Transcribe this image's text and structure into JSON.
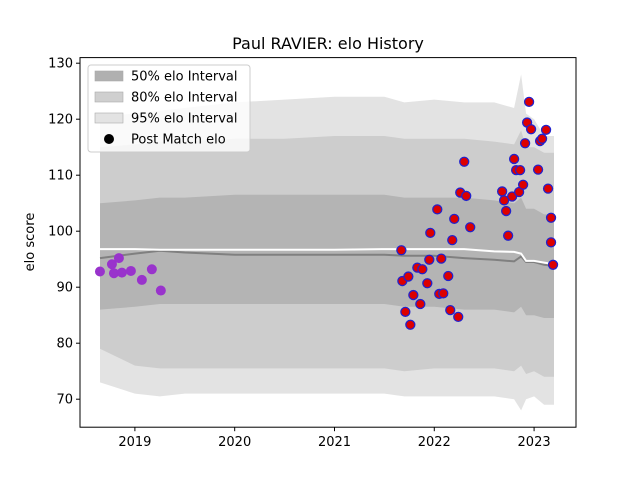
{
  "chart_data": {
    "type": "scatter",
    "title": "Paul RAVIER: elo History",
    "xlabel": "",
    "ylabel": "elo score",
    "xlim": [
      2018.45,
      2023.42
    ],
    "ylim": [
      65,
      131
    ],
    "x_ticks": [
      2019,
      2020,
      2021,
      2022,
      2023
    ],
    "x_tick_labels": [
      "2019",
      "2020",
      "2021",
      "2022",
      "2023"
    ],
    "y_ticks": [
      70,
      80,
      90,
      100,
      110,
      120,
      130
    ],
    "y_tick_labels": [
      "70",
      "80",
      "90",
      "100",
      "110",
      "120",
      "130"
    ],
    "grid": false,
    "legend_position": "top-left",
    "legend": [
      {
        "label": "50% elo Interval",
        "kind": "band",
        "color": "#b0b0b0"
      },
      {
        "label": "80% elo Interval",
        "kind": "band",
        "color": "#cfcfcf"
      },
      {
        "label": "95% elo Interval",
        "kind": "band",
        "color": "#e3e3e3"
      },
      {
        "label": "Post Match elo",
        "kind": "marker",
        "color": "#000000"
      }
    ],
    "colors": {
      "band50": "#b4b4b4",
      "band80": "#cdcdcd",
      "band95": "#e3e3e3",
      "mean_line": "#808080",
      "median_line": "#ffffff",
      "point_fill_new": "#dd0000",
      "point_edge_new": "#2222cc",
      "point_old": "#9933cc"
    },
    "bands": {
      "x": [
        2018.65,
        2019.0,
        2019.25,
        2019.5,
        2020.0,
        2020.5,
        2021.0,
        2021.5,
        2021.7,
        2022.0,
        2022.3,
        2022.6,
        2022.8,
        2022.87,
        2022.92,
        2023.0,
        2023.1,
        2023.2
      ],
      "p95_upper": [
        120.5,
        121,
        121.5,
        122,
        123,
        123.5,
        124,
        124,
        123,
        123.5,
        123,
        123,
        122,
        128,
        121,
        120,
        117,
        117
      ],
      "p80_upper": [
        115,
        115.5,
        116,
        116,
        116.5,
        116.5,
        117,
        117,
        116.5,
        116.5,
        116.5,
        116,
        115.5,
        118,
        115,
        115,
        114,
        114
      ],
      "p50_upper": [
        105,
        105.5,
        106,
        106,
        106.5,
        106.5,
        106.5,
        106.5,
        106,
        106,
        106,
        105.5,
        105,
        106,
        104,
        104,
        103,
        103
      ],
      "mean": [
        95.2,
        96.0,
        96.5,
        96.2,
        95.8,
        95.8,
        95.8,
        95.8,
        95.6,
        95.6,
        95.2,
        94.9,
        94.6,
        95.5,
        94.5,
        94.5,
        94.0,
        93.8
      ],
      "median": [
        96.8,
        96.8,
        96.7,
        96.7,
        96.7,
        96.7,
        96.7,
        96.8,
        96.8,
        96.8,
        96.8,
        96.4,
        96.3,
        96.0,
        94.7,
        94.7,
        94.4,
        94.1
      ],
      "p50_lower": [
        86,
        86.5,
        87,
        87,
        87,
        87,
        87,
        87,
        86.5,
        86.5,
        86,
        86,
        85.5,
        86.5,
        85,
        85,
        84.5,
        84.5
      ],
      "p80_lower": [
        79,
        76,
        75.5,
        75.5,
        75.5,
        75.5,
        75.5,
        75.5,
        75,
        75.5,
        75.5,
        75.5,
        75,
        76,
        74.5,
        75,
        74,
        74
      ],
      "p95_lower": [
        73,
        71,
        70.5,
        71,
        71,
        71,
        71,
        71,
        70.5,
        70.5,
        70.5,
        70.5,
        70,
        68,
        70,
        70.5,
        69,
        69
      ]
    },
    "series": [
      {
        "name": "Post Match elo",
        "points_old": [
          {
            "x": 2018.65,
            "y": 92.8
          },
          {
            "x": 2018.77,
            "y": 94.1
          },
          {
            "x": 2018.79,
            "y": 92.5
          },
          {
            "x": 2018.84,
            "y": 95.2
          },
          {
            "x": 2018.87,
            "y": 92.6
          },
          {
            "x": 2018.96,
            "y": 92.9
          },
          {
            "x": 2019.07,
            "y": 91.3
          },
          {
            "x": 2019.17,
            "y": 93.2
          },
          {
            "x": 2019.26,
            "y": 89.4
          }
        ],
        "points_new": [
          {
            "x": 2021.67,
            "y": 96.6
          },
          {
            "x": 2021.68,
            "y": 91.1
          },
          {
            "x": 2021.71,
            "y": 85.6
          },
          {
            "x": 2021.74,
            "y": 91.9
          },
          {
            "x": 2021.76,
            "y": 83.3
          },
          {
            "x": 2021.79,
            "y": 88.6
          },
          {
            "x": 2021.83,
            "y": 93.5
          },
          {
            "x": 2021.86,
            "y": 87.0
          },
          {
            "x": 2021.88,
            "y": 93.2
          },
          {
            "x": 2021.93,
            "y": 90.7
          },
          {
            "x": 2021.95,
            "y": 94.9
          },
          {
            "x": 2021.96,
            "y": 99.7
          },
          {
            "x": 2022.03,
            "y": 103.9
          },
          {
            "x": 2022.05,
            "y": 88.8
          },
          {
            "x": 2022.07,
            "y": 95.1
          },
          {
            "x": 2022.09,
            "y": 88.9
          },
          {
            "x": 2022.14,
            "y": 92.0
          },
          {
            "x": 2022.16,
            "y": 85.9
          },
          {
            "x": 2022.18,
            "y": 98.4
          },
          {
            "x": 2022.2,
            "y": 102.2
          },
          {
            "x": 2022.24,
            "y": 84.7
          },
          {
            "x": 2022.26,
            "y": 106.9
          },
          {
            "x": 2022.3,
            "y": 112.4
          },
          {
            "x": 2022.32,
            "y": 106.3
          },
          {
            "x": 2022.36,
            "y": 100.7
          },
          {
            "x": 2022.68,
            "y": 107.1
          },
          {
            "x": 2022.7,
            "y": 105.5
          },
          {
            "x": 2022.72,
            "y": 103.6
          },
          {
            "x": 2022.74,
            "y": 99.2
          },
          {
            "x": 2022.78,
            "y": 106.2
          },
          {
            "x": 2022.8,
            "y": 112.9
          },
          {
            "x": 2022.82,
            "y": 110.9
          },
          {
            "x": 2022.85,
            "y": 107.0
          },
          {
            "x": 2022.86,
            "y": 110.9
          },
          {
            "x": 2022.89,
            "y": 108.3
          },
          {
            "x": 2022.91,
            "y": 115.7
          },
          {
            "x": 2022.93,
            "y": 119.4
          },
          {
            "x": 2022.95,
            "y": 123.1
          },
          {
            "x": 2022.97,
            "y": 118.2
          },
          {
            "x": 2023.04,
            "y": 111.0
          },
          {
            "x": 2023.06,
            "y": 116.1
          },
          {
            "x": 2023.08,
            "y": 116.5
          },
          {
            "x": 2023.12,
            "y": 118.1
          },
          {
            "x": 2023.14,
            "y": 107.6
          },
          {
            "x": 2023.17,
            "y": 102.4
          },
          {
            "x": 2023.17,
            "y": 98.0
          },
          {
            "x": 2023.19,
            "y": 94.0
          }
        ]
      }
    ]
  }
}
